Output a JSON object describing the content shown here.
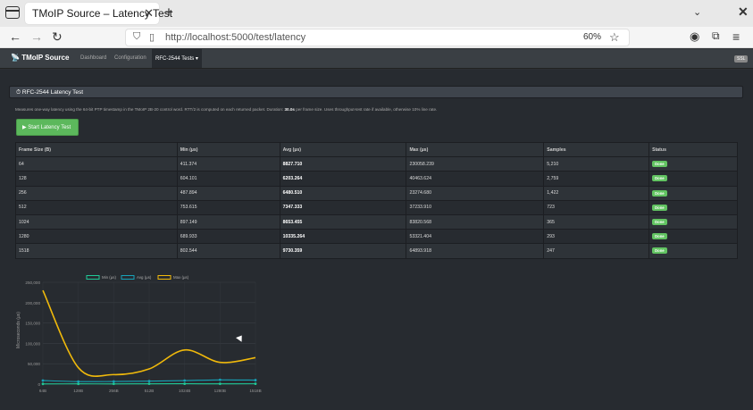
{
  "browser": {
    "tab_title": "TMoIP Source – Latency Test",
    "tab_close": "✕",
    "new_tab": "+",
    "url": "http://localhost:5000/test/latency",
    "zoom": "60%"
  },
  "app": {
    "brand": "TMoIP Source",
    "nav": [
      "Dashboard",
      "Configuration",
      "RFC-2544 Tests ▾"
    ],
    "badge": "SSL"
  },
  "panel": {
    "title": "RFC-2544 Latency Test",
    "desc_pre": "Measures one-way latency using the 64-bit PTP timestamp in the TMoIP 2B-20 control word. RTT/2 is computed on each returned packet. Duration: ",
    "desc_bold": "30.0s",
    "desc_post": " per frame size. Uses throughput-test rate if available, otherwise 10% line rate.",
    "button_label": "▶ Start Latency Test"
  },
  "table": {
    "headers": [
      "Frame Size (B)",
      "Min (µs)",
      "Avg (µs)",
      "Max (µs)",
      "Samples",
      "Status"
    ],
    "rows": [
      [
        "64",
        "411.374",
        "8827.710",
        "230058.239",
        "5,210",
        "Done"
      ],
      [
        "128",
        "604.101",
        "6203.264",
        "40463.624",
        "2,759",
        "Done"
      ],
      [
        "256",
        "487.894",
        "6480.510",
        "23274.680",
        "1,422",
        "Done"
      ],
      [
        "512",
        "753.615",
        "7347.333",
        "37233.910",
        "723",
        "Done"
      ],
      [
        "1024",
        "897.149",
        "8653.455",
        "83820.568",
        "365",
        "Done"
      ],
      [
        "1280",
        "689.933",
        "10335.264",
        "53321.404",
        "293",
        "Done"
      ],
      [
        "1518",
        "802.544",
        "9730.359",
        "64893.918",
        "247",
        "Done"
      ]
    ]
  },
  "chart_data": {
    "type": "line",
    "categories": [
      "64B",
      "128B",
      "256B",
      "512B",
      "1024B",
      "1280B",
      "1518B"
    ],
    "ylabel": "Microseconds (µs)",
    "ylim": [
      0,
      250000
    ],
    "yticks": [
      "250,000",
      "200,000",
      "150,000",
      "100,000",
      "50,000",
      "0"
    ],
    "legend_position": "top",
    "series": [
      {
        "name": "Min (µs)",
        "color": "#20c997",
        "values": [
          411.374,
          604.101,
          487.894,
          753.615,
          897.149,
          689.933,
          802.544
        ]
      },
      {
        "name": "Avg (µs)",
        "color": "#17a2b8",
        "values": [
          8827.71,
          6203.264,
          6480.51,
          7347.333,
          8653.455,
          10335.264,
          9730.359
        ]
      },
      {
        "name": "Max (µs)",
        "color": "#f0b90b",
        "values": [
          230058.239,
          40463.624,
          23274.68,
          37233.91,
          83820.568,
          53321.404,
          64893.918
        ]
      }
    ]
  }
}
